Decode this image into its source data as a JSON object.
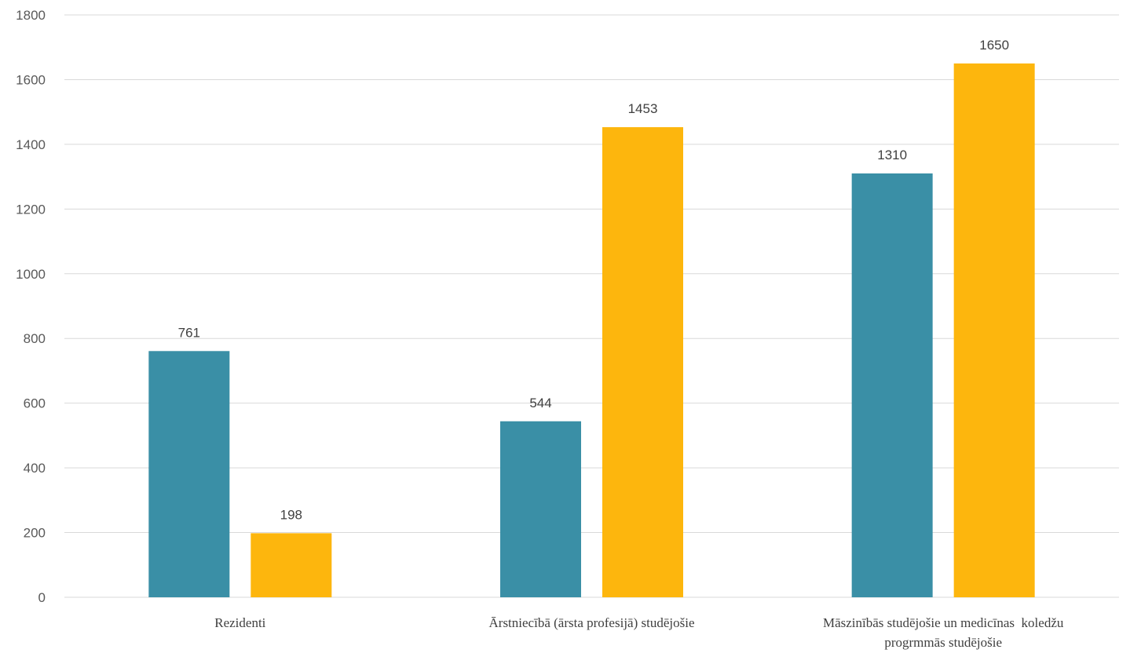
{
  "chart_data": {
    "type": "bar",
    "categories": [
      [
        "Rezidenti"
      ],
      [
        "Ārstniecībā (ārsta profesijā) studējošie"
      ],
      [
        "Māszinībās studējošie un medicīnas  koledžu",
        "progrmmās studējošie"
      ]
    ],
    "series": [
      {
        "values": [
          761,
          544,
          1310
        ],
        "color": "#3a8fa6"
      },
      {
        "values": [
          198,
          1453,
          1650
        ],
        "color": "#fdb60d"
      }
    ],
    "ylim": [
      0,
      1800
    ],
    "yticks": [
      0,
      200,
      400,
      600,
      800,
      1000,
      1200,
      1400,
      1600,
      1800
    ],
    "grid": true,
    "legend": "none",
    "title": "",
    "xlabel": "",
    "ylabel": ""
  }
}
